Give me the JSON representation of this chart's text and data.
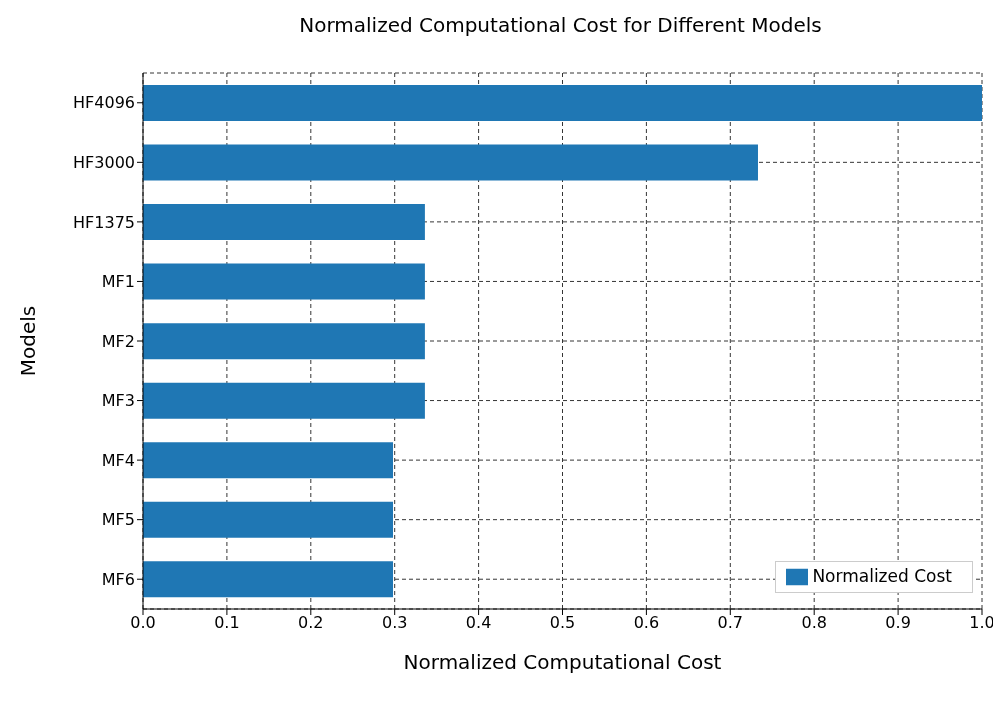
{
  "chart_data": {
    "type": "bar",
    "orientation": "horizontal",
    "title": "Normalized Computational Cost for Different Models",
    "xlabel": "Normalized Computational Cost",
    "ylabel": "Models",
    "categories": [
      "HF4096",
      "HF3000",
      "HF1375",
      "MF1",
      "MF2",
      "MF3",
      "MF4",
      "MF5",
      "MF6"
    ],
    "series": [
      {
        "name": "Normalized Cost",
        "color": "#1f77b4",
        "values": [
          1.0,
          0.733,
          0.336,
          0.336,
          0.336,
          0.336,
          0.298,
          0.298,
          0.298
        ]
      }
    ],
    "xlim": [
      0,
      1
    ],
    "xticks": [
      {
        "value": 0,
        "label": "0.0"
      },
      {
        "value": 0.1,
        "label": "0.1"
      },
      {
        "value": 0.2,
        "label": "0.2"
      },
      {
        "value": 0.3,
        "label": "0.3"
      },
      {
        "value": 0.4,
        "label": "0.4"
      },
      {
        "value": 0.5,
        "label": "0.5"
      },
      {
        "value": 0.6,
        "label": "0.6"
      },
      {
        "value": 0.7,
        "label": "0.7"
      },
      {
        "value": 0.8,
        "label": "0.8"
      },
      {
        "value": 0.9,
        "label": "0.9"
      },
      {
        "value": 1,
        "label": "1.0"
      }
    ],
    "grid": true,
    "legend": "bottom right"
  }
}
